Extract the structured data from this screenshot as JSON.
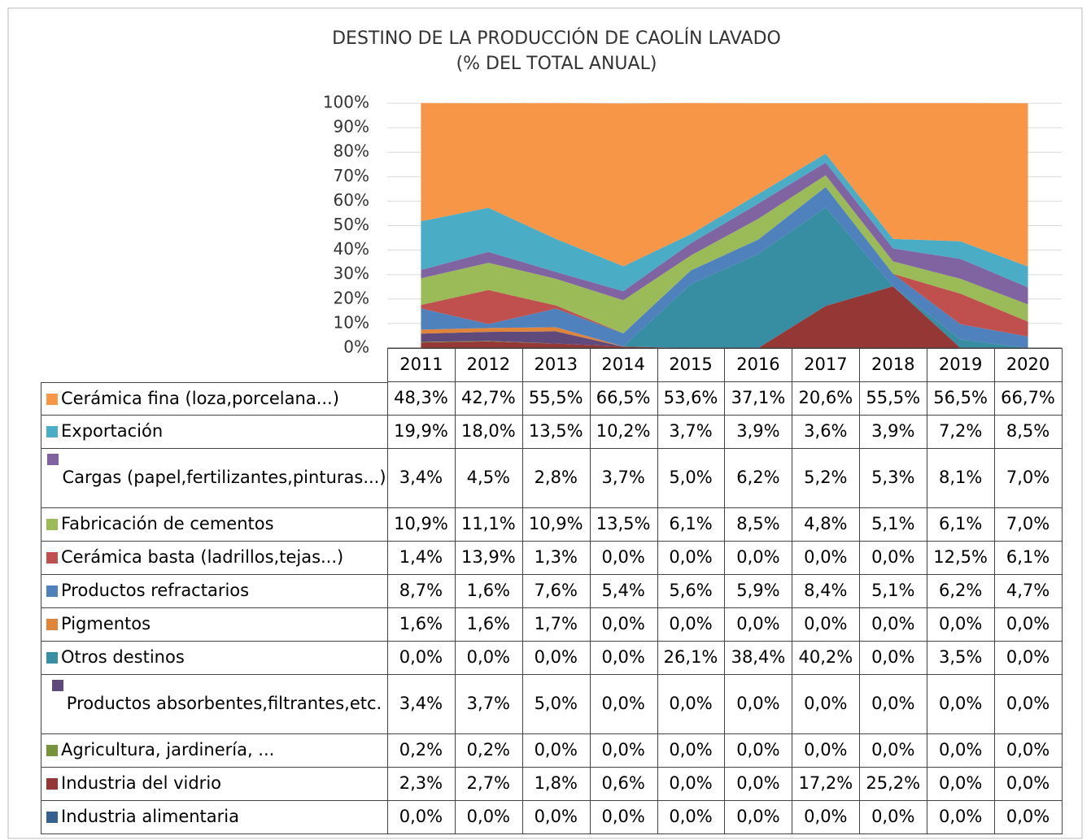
{
  "chart_data": {
    "type": "area",
    "stacked": true,
    "title": "DESTINO DE LA PRODUCCIÓN DE CAOLÍN LAVADO",
    "subtitle": "(% DEL TOTAL ANUAL)",
    "categories": [
      "2011",
      "2012",
      "2013",
      "2014",
      "2015",
      "2016",
      "2017",
      "2018",
      "2019",
      "2020"
    ],
    "ylim": [
      0,
      100
    ],
    "yticks": [
      {
        "value": 0,
        "label": "0%"
      },
      {
        "value": 10,
        "label": "10%"
      },
      {
        "value": 20,
        "label": "20%"
      },
      {
        "value": 30,
        "label": "30%"
      },
      {
        "value": 40,
        "label": "40%"
      },
      {
        "value": 50,
        "label": "50%"
      },
      {
        "value": 60,
        "label": "60%"
      },
      {
        "value": 70,
        "label": "70%"
      },
      {
        "value": 80,
        "label": "80%"
      },
      {
        "value": 90,
        "label": "90%"
      },
      {
        "value": 100,
        "label": "100%"
      }
    ],
    "grid": true,
    "series": [
      {
        "name": "Cerámica fina (loza,porcelana...)",
        "color": "#f79646",
        "values": [
          48.3,
          42.7,
          55.5,
          66.5,
          53.6,
          37.1,
          20.6,
          55.5,
          56.5,
          66.7
        ],
        "value_labels": [
          "48,3%",
          "42,7%",
          "55,5%",
          "66,5%",
          "53,6%",
          "37,1%",
          "20,6%",
          "55,5%",
          "56,5%",
          "66,7%"
        ]
      },
      {
        "name": "Exportación",
        "color": "#4bacc6",
        "values": [
          19.9,
          18.0,
          13.5,
          10.2,
          3.7,
          3.9,
          3.6,
          3.9,
          7.2,
          8.5
        ],
        "value_labels": [
          "19,9%",
          "18,0%",
          "13,5%",
          "10,2%",
          "3,7%",
          "3,9%",
          "3,6%",
          "3,9%",
          "7,2%",
          "8,5%"
        ]
      },
      {
        "name": "Cargas (papel,fertilizantes,pinturas...)",
        "color": "#8064a2",
        "values": [
          3.4,
          4.5,
          2.8,
          3.7,
          5.0,
          6.2,
          5.2,
          5.3,
          8.1,
          7.0
        ],
        "value_labels": [
          "3,4%",
          "4,5%",
          "2,8%",
          "3,7%",
          "5,0%",
          "6,2%",
          "5,2%",
          "5,3%",
          "8,1%",
          "7,0%"
        ]
      },
      {
        "name": "Fabricación de cementos",
        "color": "#9bbb59",
        "values": [
          10.9,
          11.1,
          10.9,
          13.5,
          6.1,
          8.5,
          4.8,
          5.1,
          6.1,
          7.0
        ],
        "value_labels": [
          "10,9%",
          "11,1%",
          "10,9%",
          "13,5%",
          "6,1%",
          "8,5%",
          "4,8%",
          "5,1%",
          "6,1%",
          "7,0%"
        ]
      },
      {
        "name": "Cerámica basta (ladrillos,tejas...)",
        "color": "#c0504d",
        "values": [
          1.4,
          13.9,
          1.3,
          0.0,
          0.0,
          0.0,
          0.0,
          0.0,
          12.5,
          6.1
        ],
        "value_labels": [
          "1,4%",
          "13,9%",
          "1,3%",
          "0,0%",
          "0,0%",
          "0,0%",
          "0,0%",
          "0,0%",
          "12,5%",
          "6,1%"
        ]
      },
      {
        "name": "Productos refractarios",
        "color": "#4f81bd",
        "values": [
          8.7,
          1.6,
          7.6,
          5.4,
          5.6,
          5.9,
          8.4,
          5.1,
          6.2,
          4.7
        ],
        "value_labels": [
          "8,7%",
          "1,6%",
          "7,6%",
          "5,4%",
          "5,6%",
          "5,9%",
          "8,4%",
          "5,1%",
          "6,2%",
          "4,7%"
        ]
      },
      {
        "name": "Pigmentos",
        "color": "#e0843c",
        "values": [
          1.6,
          1.6,
          1.7,
          0.0,
          0.0,
          0.0,
          0.0,
          0.0,
          0.0,
          0.0
        ],
        "value_labels": [
          "1,6%",
          "1,6%",
          "1,7%",
          "0,0%",
          "0,0%",
          "0,0%",
          "0,0%",
          "0,0%",
          "0,0%",
          "0,0%"
        ]
      },
      {
        "name": "Otros destinos",
        "color": "#378da2",
        "values": [
          0.0,
          0.0,
          0.0,
          0.0,
          26.1,
          38.4,
          40.2,
          0.0,
          3.5,
          0.0
        ],
        "value_labels": [
          "0,0%",
          "0,0%",
          "0,0%",
          "0,0%",
          "26,1%",
          "38,4%",
          "40,2%",
          "0,0%",
          "3,5%",
          "0,0%"
        ]
      },
      {
        "name": "Productos absorbentes,filtrantes,etc.",
        "color": "#604a7b",
        "values": [
          3.4,
          3.7,
          5.0,
          0.0,
          0.0,
          0.0,
          0.0,
          0.0,
          0.0,
          0.0
        ],
        "value_labels": [
          "3,4%",
          "3,7%",
          "5,0%",
          "0,0%",
          "0,0%",
          "0,0%",
          "0,0%",
          "0,0%",
          "0,0%",
          "0,0%"
        ]
      },
      {
        "name": "Agricultura, jardinería, ...",
        "color": "#77933c",
        "values": [
          0.2,
          0.2,
          0.0,
          0.0,
          0.0,
          0.0,
          0.0,
          0.0,
          0.0,
          0.0
        ],
        "value_labels": [
          "0,2%",
          "0,2%",
          "0,0%",
          "0,0%",
          "0,0%",
          "0,0%",
          "0,0%",
          "0,0%",
          "0,0%",
          "0,0%"
        ]
      },
      {
        "name": "Industria del vidrio",
        "color": "#953735",
        "values": [
          2.3,
          2.7,
          1.8,
          0.6,
          0.0,
          0.0,
          17.2,
          25.2,
          0.0,
          0.0
        ],
        "value_labels": [
          "2,3%",
          "2,7%",
          "1,8%",
          "0,6%",
          "0,0%",
          "0,0%",
          "17,2%",
          "25,2%",
          "0,0%",
          "0,0%"
        ]
      },
      {
        "name": "Industria alimentaria",
        "color": "#376092",
        "values": [
          0.0,
          0.0,
          0.0,
          0.0,
          0.0,
          0.0,
          0.0,
          0.0,
          0.0,
          0.0
        ],
        "value_labels": [
          "0,0%",
          "0,0%",
          "0,0%",
          "0,0%",
          "0,0%",
          "0,0%",
          "0,0%",
          "0,0%",
          "0,0%",
          "0,0%"
        ]
      }
    ]
  }
}
